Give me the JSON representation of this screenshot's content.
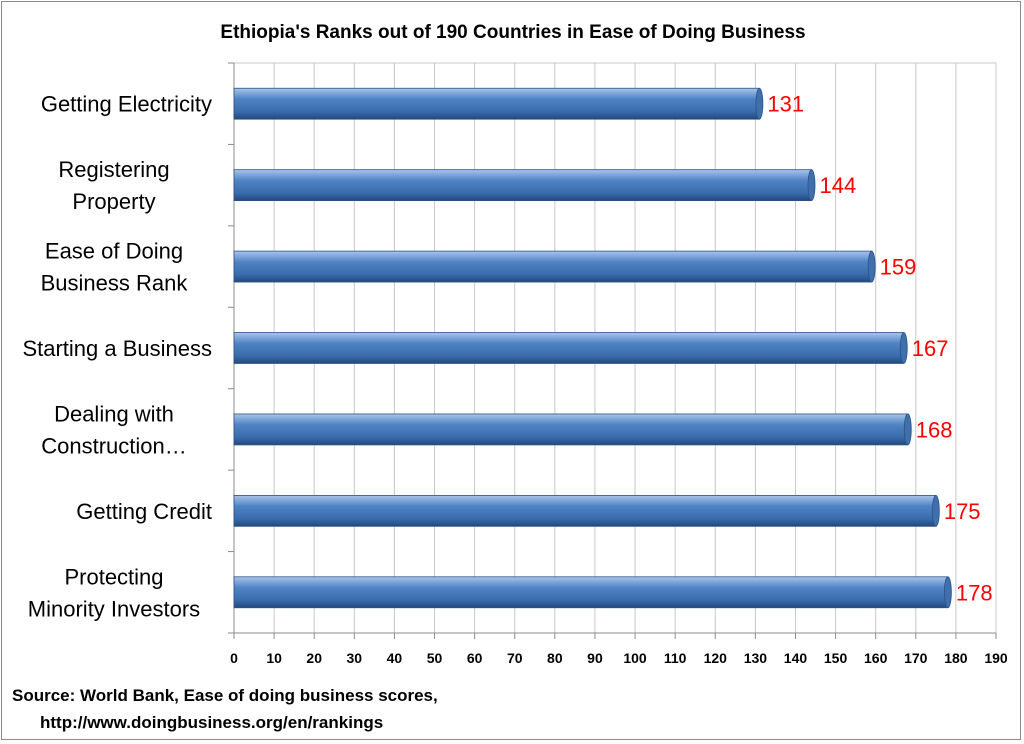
{
  "chart_data": {
    "type": "bar",
    "orientation": "horizontal",
    "title": "Ethiopia's Ranks out of 190 Countries in Ease of Doing Business",
    "categories": [
      "Getting Electricity",
      "Registering Property",
      "Ease of Doing Business Rank",
      "Starting a Business",
      "Dealing with Construction…",
      "Getting Credit",
      "Protecting Minority Investors"
    ],
    "category_lines": [
      [
        "Getting Electricity"
      ],
      [
        "Registering",
        "Property"
      ],
      [
        "Ease of Doing",
        "Business Rank"
      ],
      [
        "Starting a Business"
      ],
      [
        "Dealing with",
        "Construction…"
      ],
      [
        "Getting Credit"
      ],
      [
        "Protecting",
        "Minority Investors"
      ]
    ],
    "values": [
      131,
      144,
      159,
      167,
      168,
      175,
      178
    ],
    "xlim": [
      0,
      190
    ],
    "xticks": [
      "0",
      "10",
      "20",
      "30",
      "40",
      "50",
      "60",
      "70",
      "80",
      "90",
      "100",
      "110",
      "120",
      "130",
      "140",
      "150",
      "160",
      "170",
      "180",
      "190"
    ],
    "xlabel": "",
    "ylabel": "",
    "grid": "vertical",
    "legend": "none",
    "data_labels": true,
    "bar_color": "#4a7ebb",
    "data_label_color": "#ff0000"
  },
  "source": {
    "line1": "Source: World Bank, Ease of doing business scores,",
    "line2": "http://www.doingbusiness.org/en/rankings"
  }
}
